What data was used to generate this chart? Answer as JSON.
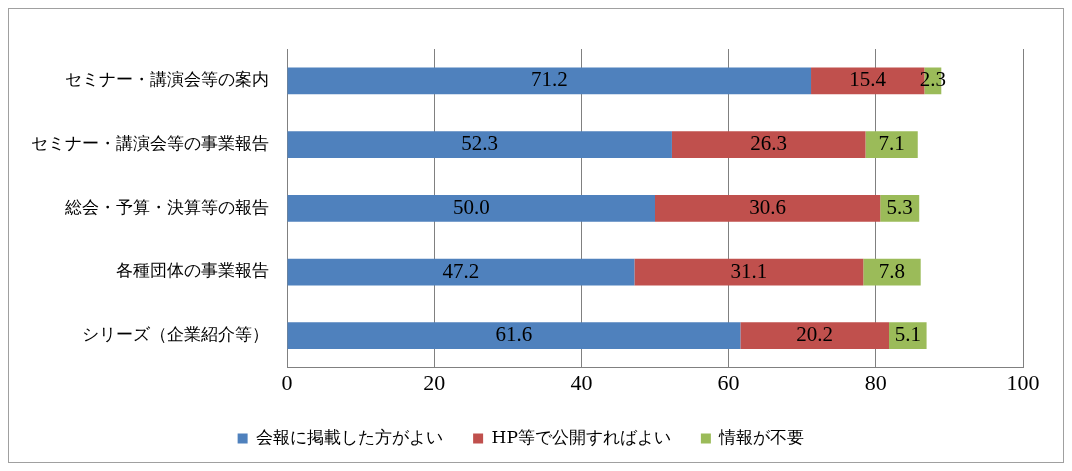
{
  "chart_data": {
    "type": "bar",
    "orientation": "horizontal",
    "stacked": true,
    "categories": [
      "セミナー・講演会等の案内",
      "セミナー・講演会等の事業報告",
      "総会・予算・決算等の報告",
      "各種団体の事業報告",
      "シリーズ（企業紹介等）"
    ],
    "series": [
      {
        "name": "会報に掲載した方がよい",
        "color": "#4f81bd",
        "values": [
          71.2,
          52.3,
          50.0,
          47.2,
          61.6
        ],
        "value_labels": [
          "71.2",
          "52.3",
          "50.0",
          "47.2",
          "61.6"
        ]
      },
      {
        "name": "HP等で公開すればよい",
        "color": "#c0504d",
        "values": [
          15.4,
          26.3,
          30.6,
          31.1,
          20.2
        ],
        "value_labels": [
          "15.4",
          "26.3",
          "30.6",
          "31.1",
          "20.2"
        ]
      },
      {
        "name": "情報が不要",
        "color": "#9bbb59",
        "values": [
          2.3,
          7.1,
          5.3,
          7.8,
          5.1
        ],
        "value_labels": [
          "2.3",
          "7.1",
          "5.3",
          "7.8",
          "5.1"
        ]
      }
    ],
    "xlim": [
      0,
      100
    ],
    "xticks": [
      0,
      20,
      40,
      60,
      80,
      100
    ],
    "grid": "x",
    "legend": "bottom"
  }
}
